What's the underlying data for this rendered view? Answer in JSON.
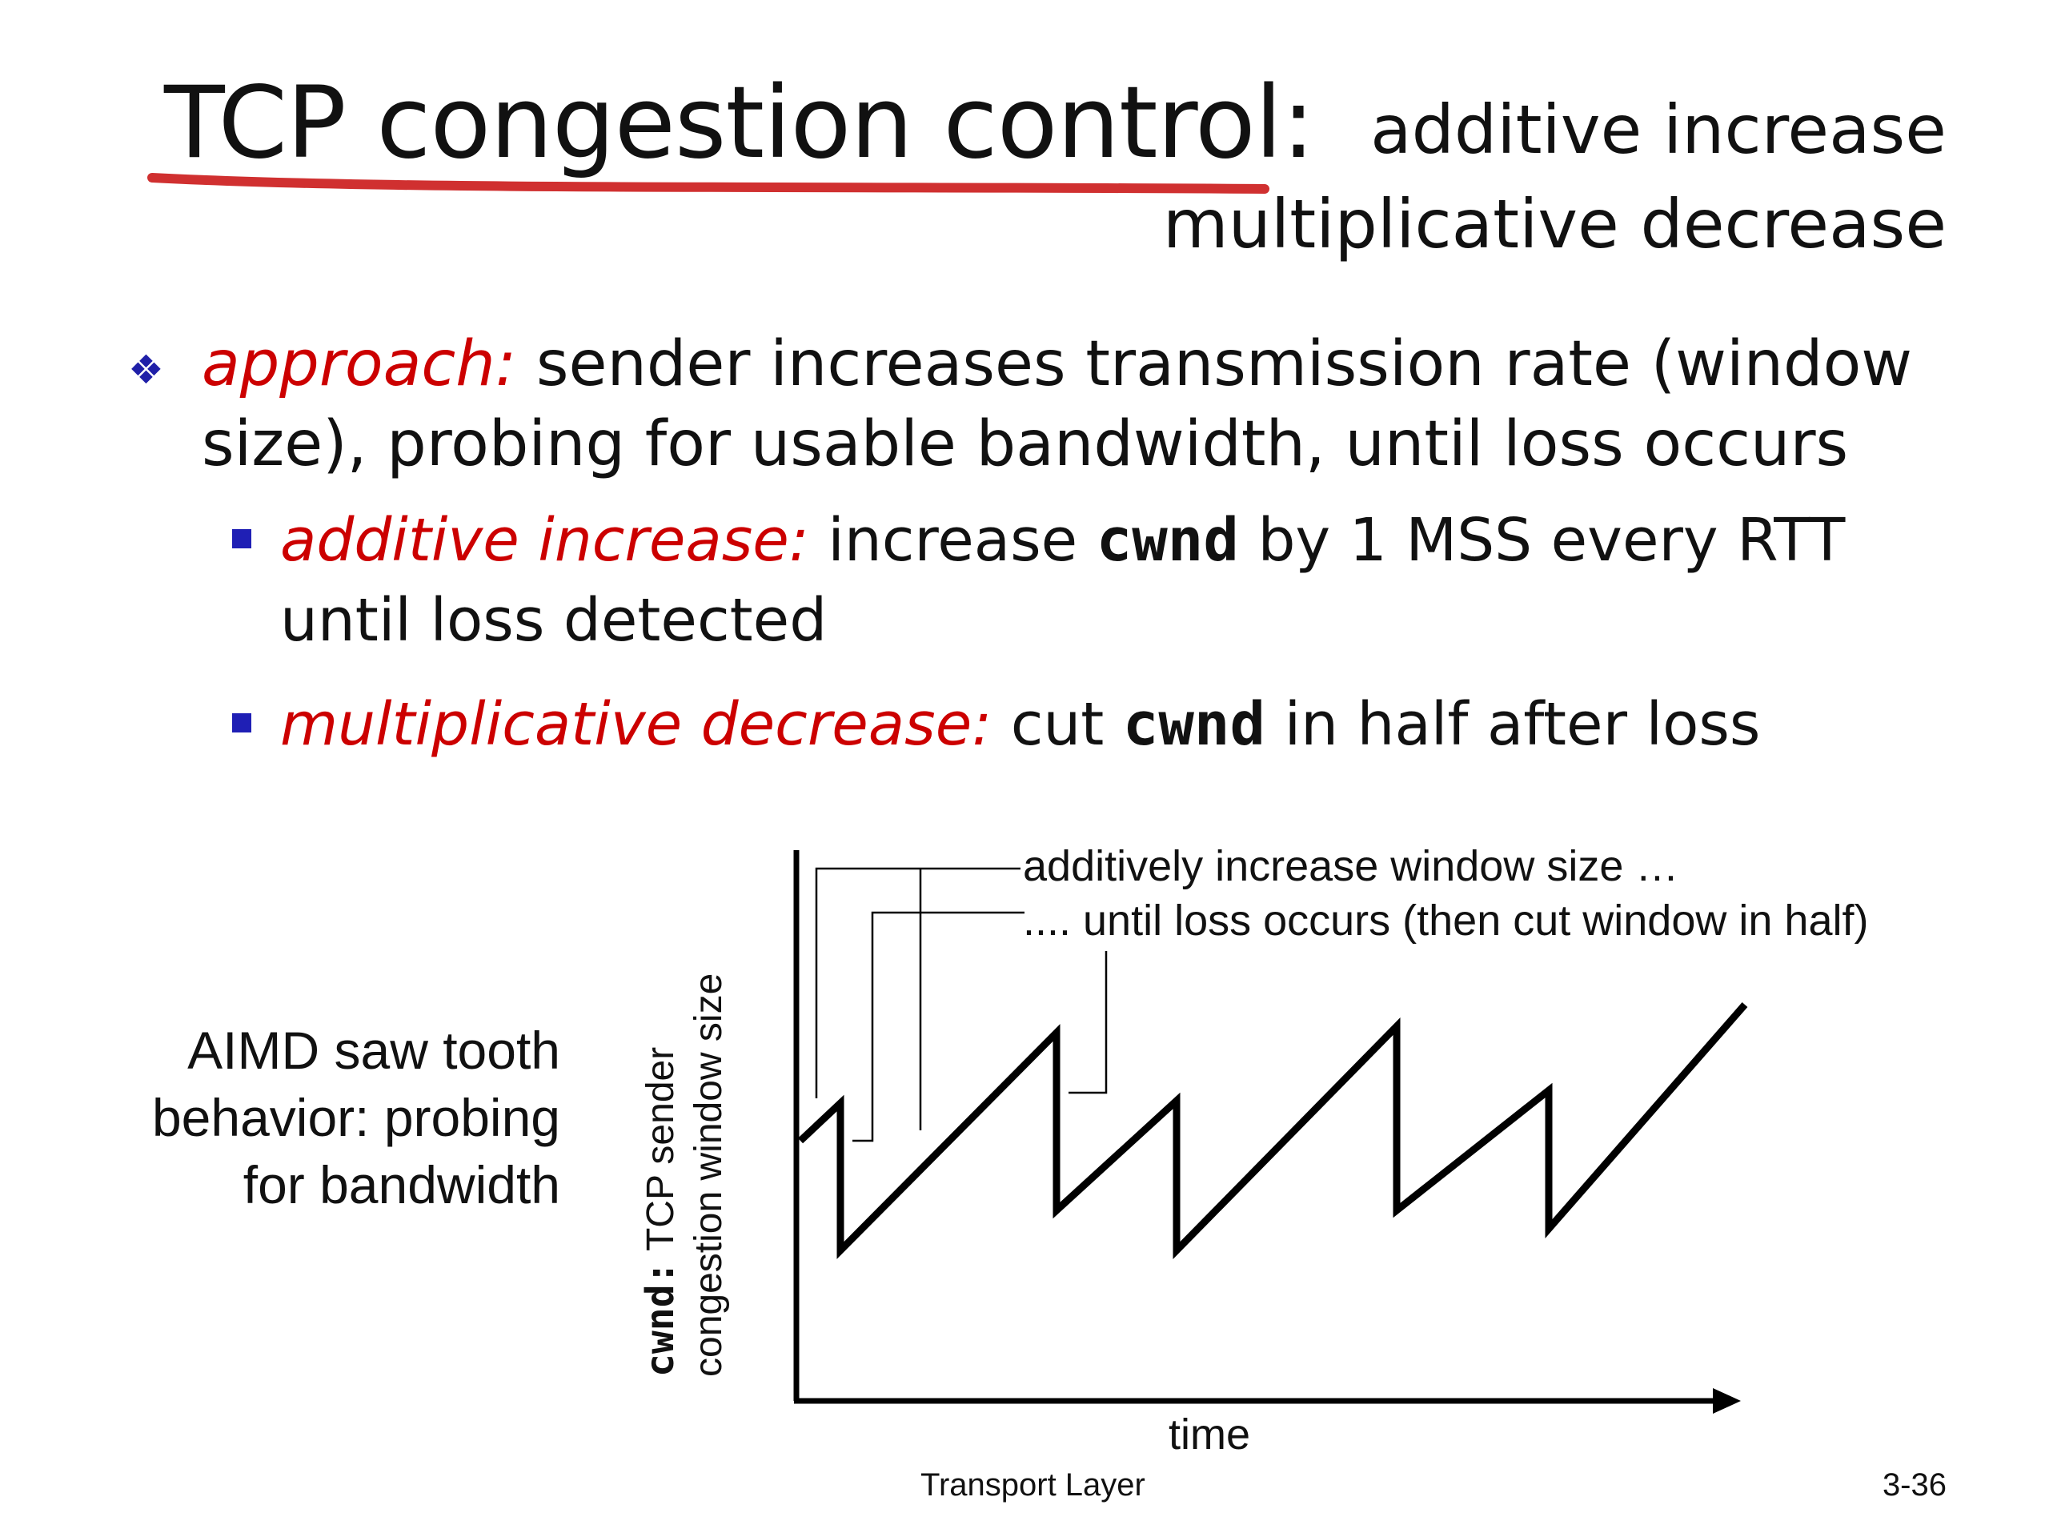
{
  "title": {
    "main": "TCP congestion control:",
    "sub_line1": "additive increase",
    "sub_line2": "multiplicative decrease"
  },
  "bullets": {
    "approach_label": "approach:",
    "approach_text": "sender increases transmission rate (window size), probing for usable bandwidth, until loss occurs",
    "ai_label": "additive increase:",
    "ai_text_1": "increase",
    "ai_code": "cwnd",
    "ai_text_2": "by 1 MSS every RTT until loss detected",
    "md_label": "multiplicative decrease:",
    "md_text_1": "cut",
    "md_code": "cwnd",
    "md_text_2": "in half after loss"
  },
  "figure": {
    "side_label": "AIMD saw tooth behavior: probing for bandwidth",
    "ylabel_code": "cwnd:",
    "ylabel_line1": "TCP sender",
    "ylabel_line2": "congestion window size",
    "xlabel": "time",
    "annotation_increase": "additively increase window size …",
    "annotation_loss": ".... until loss occurs (then cut window in half)"
  },
  "footer": {
    "left": "Transport Layer",
    "right": "3-36"
  },
  "colors": {
    "accent_red": "#cc0000",
    "bullet_blue": "#1f1fb5",
    "underline": "#d03030"
  }
}
